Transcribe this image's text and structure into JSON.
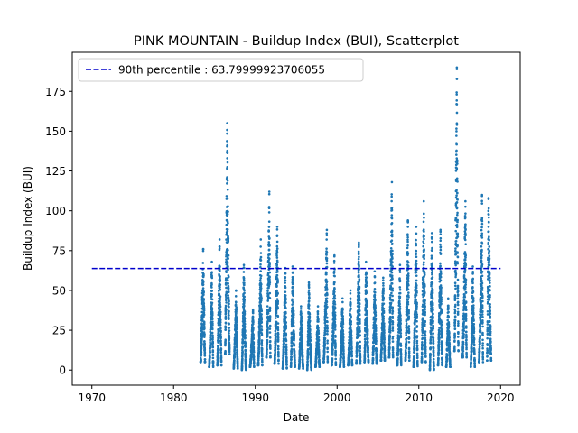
{
  "chart_data": {
    "type": "scatter",
    "title": "PINK MOUNTAIN - Buildup Index (BUI), Scatterplot",
    "xlabel": "Date",
    "ylabel": "Buildup Index (BUI)",
    "xlim": [
      1967.6,
      2022.4
    ],
    "ylim": [
      -9.5,
      199.5
    ],
    "x_ticks": [
      1970,
      1980,
      1990,
      2000,
      2010,
      2020
    ],
    "y_ticks": [
      0,
      25,
      50,
      75,
      100,
      125,
      150,
      175
    ],
    "point_color": "#1f77b4",
    "legend": {
      "placement": "upper-left",
      "entries": [
        {
          "label": "90th percentile : 63.79999923706055",
          "style": "dashed",
          "color": "#0000cc"
        }
      ]
    },
    "reference_line": {
      "y": 63.79999923706055,
      "x_range": [
        1970,
        2020
      ],
      "color": "#0000cc",
      "style": "dashed"
    },
    "seasons": [
      {
        "year": 1983,
        "start": 1983.3,
        "end": 1983.85,
        "peak": 76,
        "min": 5
      },
      {
        "year": 1984,
        "start": 1984.35,
        "end": 1984.85,
        "peak": 68,
        "min": 2
      },
      {
        "year": 1985,
        "start": 1985.35,
        "end": 1985.85,
        "peak": 82,
        "min": 3
      },
      {
        "year": 1986,
        "start": 1986.3,
        "end": 1986.85,
        "peak": 155,
        "min": 10
      },
      {
        "year": 1987,
        "start": 1987.35,
        "end": 1987.85,
        "peak": 50,
        "min": 1
      },
      {
        "year": 1988,
        "start": 1988.35,
        "end": 1988.85,
        "peak": 66,
        "min": 0
      },
      {
        "year": 1989,
        "start": 1989.35,
        "end": 1989.85,
        "peak": 38,
        "min": 2
      },
      {
        "year": 1990,
        "start": 1990.35,
        "end": 1990.85,
        "peak": 82,
        "min": 3
      },
      {
        "year": 1991,
        "start": 1991.35,
        "end": 1991.85,
        "peak": 112,
        "min": 8
      },
      {
        "year": 1992,
        "start": 1992.35,
        "end": 1992.85,
        "peak": 90,
        "min": 4
      },
      {
        "year": 1993,
        "start": 1993.35,
        "end": 1993.85,
        "peak": 64,
        "min": 1
      },
      {
        "year": 1994,
        "start": 1994.35,
        "end": 1994.85,
        "peak": 65,
        "min": 2
      },
      {
        "year": 1995,
        "start": 1995.35,
        "end": 1995.85,
        "peak": 40,
        "min": 1
      },
      {
        "year": 1996,
        "start": 1996.35,
        "end": 1996.85,
        "peak": 55,
        "min": 0
      },
      {
        "year": 1997,
        "start": 1997.35,
        "end": 1997.85,
        "peak": 40,
        "min": 2
      },
      {
        "year": 1998,
        "start": 1998.35,
        "end": 1998.85,
        "peak": 88,
        "min": 5
      },
      {
        "year": 1999,
        "start": 1999.35,
        "end": 1999.85,
        "peak": 72,
        "min": 3
      },
      {
        "year": 2000,
        "start": 2000.35,
        "end": 2000.85,
        "peak": 45,
        "min": 2
      },
      {
        "year": 2001,
        "start": 2001.35,
        "end": 2001.85,
        "peak": 50,
        "min": 3
      },
      {
        "year": 2002,
        "start": 2002.35,
        "end": 2002.85,
        "peak": 80,
        "min": 4
      },
      {
        "year": 2003,
        "start": 2003.35,
        "end": 2003.85,
        "peak": 68,
        "min": 5
      },
      {
        "year": 2004,
        "start": 2004.35,
        "end": 2004.85,
        "peak": 62,
        "min": 4
      },
      {
        "year": 2005,
        "start": 2005.35,
        "end": 2005.85,
        "peak": 58,
        "min": 6
      },
      {
        "year": 2006,
        "start": 2006.35,
        "end": 2006.85,
        "peak": 118,
        "min": 8
      },
      {
        "year": 2007,
        "start": 2007.35,
        "end": 2007.85,
        "peak": 66,
        "min": 3
      },
      {
        "year": 2008,
        "start": 2008.35,
        "end": 2008.85,
        "peak": 94,
        "min": 6
      },
      {
        "year": 2009,
        "start": 2009.35,
        "end": 2009.85,
        "peak": 90,
        "min": 2
      },
      {
        "year": 2010,
        "start": 2010.35,
        "end": 2010.85,
        "peak": 106,
        "min": 5
      },
      {
        "year": 2011,
        "start": 2011.35,
        "end": 2011.85,
        "peak": 86,
        "min": 0
      },
      {
        "year": 2012,
        "start": 2012.35,
        "end": 2012.85,
        "peak": 88,
        "min": 3
      },
      {
        "year": 2013,
        "start": 2013.35,
        "end": 2013.85,
        "peak": 45,
        "min": 2
      },
      {
        "year": 2014,
        "start": 2014.35,
        "end": 2014.85,
        "peak": 190,
        "min": 12
      },
      {
        "year": 2015,
        "start": 2015.35,
        "end": 2015.85,
        "peak": 106,
        "min": 8
      },
      {
        "year": 2016,
        "start": 2016.35,
        "end": 2016.85,
        "peak": 65,
        "min": 2
      },
      {
        "year": 2017,
        "start": 2017.35,
        "end": 2017.85,
        "peak": 110,
        "min": 5
      },
      {
        "year": 2018,
        "start": 2018.35,
        "end": 2018.85,
        "peak": 108,
        "min": 6
      }
    ]
  }
}
